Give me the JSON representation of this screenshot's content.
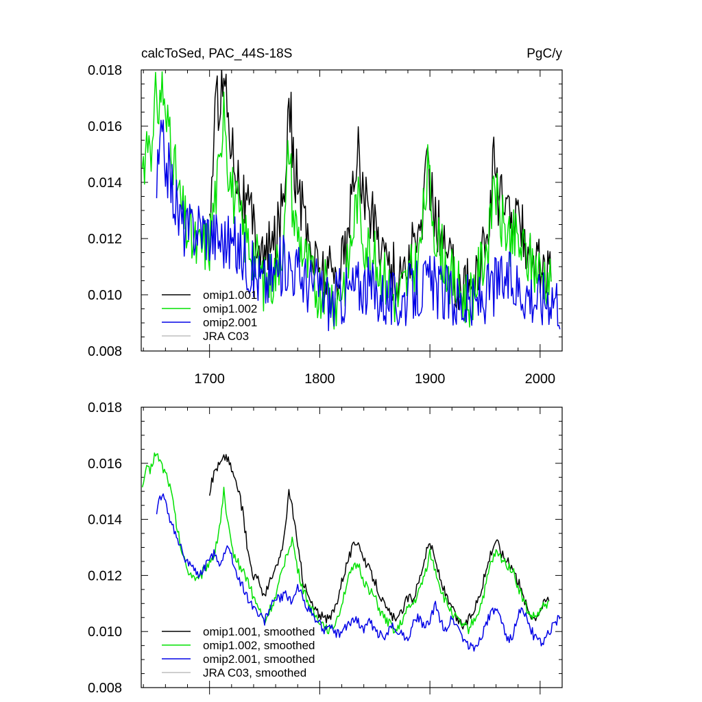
{
  "figure": {
    "title_left": "calcToSed, PAC_44S-18S",
    "title_right": "PgC/y"
  },
  "colors": {
    "omip1_001": "#000000",
    "omip1_002": "#00e000",
    "omip2_001": "#0000e6",
    "jra_c03": "#bdbdbd"
  },
  "chart_data": [
    {
      "type": "line",
      "panel": "top",
      "title": "calcToSed, PAC_44S-18S",
      "units": "PgC/y",
      "xlim": [
        1638,
        2020
      ],
      "ylim": [
        0.008,
        0.018
      ],
      "x_ticks": [
        1700,
        1800,
        1900,
        2000
      ],
      "x_tick_labels": [
        "1700",
        "1800",
        "1900",
        "2000"
      ],
      "y_ticks": [
        0.008,
        0.01,
        0.012,
        0.014,
        0.016,
        0.018
      ],
      "y_tick_labels": [
        "0.008",
        "0.010",
        "0.012",
        "0.014",
        "0.016",
        "0.018"
      ],
      "legend": [
        "omip1.001",
        "omip1.002",
        "omip2.001",
        "JRA C03"
      ],
      "legend_position": "bottom-left",
      "series": [
        {
          "name": "omip1.001",
          "color_key": "omip1_001",
          "x": [
            1700,
            1705,
            1710,
            1713,
            1716,
            1720,
            1725,
            1730,
            1740,
            1750,
            1760,
            1768,
            1772,
            1776,
            1785,
            1795,
            1805,
            1815,
            1825,
            1834,
            1840,
            1850,
            1860,
            1870,
            1880,
            1890,
            1898,
            1905,
            1915,
            1925,
            1935,
            1945,
            1955,
            1958,
            1962,
            1970,
            1980,
            1990,
            2000,
            2010
          ],
          "y": [
            0.0125,
            0.0165,
            0.0172,
            0.0178,
            0.0168,
            0.0155,
            0.0145,
            0.0135,
            0.0125,
            0.0112,
            0.012,
            0.0138,
            0.0175,
            0.0148,
            0.0128,
            0.0112,
            0.0108,
            0.0108,
            0.0118,
            0.0153,
            0.0135,
            0.0125,
            0.0115,
            0.0105,
            0.0112,
            0.012,
            0.0145,
            0.0128,
            0.0115,
            0.0105,
            0.0102,
            0.0112,
            0.0128,
            0.0155,
            0.0135,
            0.0128,
            0.0125,
            0.0118,
            0.011,
            0.0105
          ]
        },
        {
          "name": "omip1.002",
          "color_key": "omip1_002",
          "x": [
            1639,
            1643,
            1646,
            1648,
            1652,
            1654,
            1657,
            1660,
            1664,
            1668,
            1672,
            1676,
            1680,
            1685,
            1690,
            1695,
            1700,
            1705,
            1710,
            1713,
            1716,
            1720,
            1725,
            1730,
            1740,
            1750,
            1760,
            1768,
            1772,
            1776,
            1785,
            1795,
            1805,
            1815,
            1825,
            1834,
            1840,
            1850,
            1860,
            1870,
            1880,
            1890,
            1898,
            1905,
            1915,
            1925,
            1935,
            1945,
            1955,
            1958,
            1962,
            1970,
            1980,
            1990,
            2000,
            2010
          ],
          "y": [
            0.0145,
            0.0155,
            0.016,
            0.0148,
            0.0175,
            0.0162,
            0.0178,
            0.0158,
            0.0162,
            0.0145,
            0.0135,
            0.0128,
            0.0122,
            0.0118,
            0.0115,
            0.0118,
            0.0118,
            0.0135,
            0.0145,
            0.0175,
            0.015,
            0.0138,
            0.013,
            0.0122,
            0.0115,
            0.0103,
            0.0108,
            0.0122,
            0.0155,
            0.0128,
            0.0115,
            0.0103,
            0.0102,
            0.0098,
            0.0108,
            0.0135,
            0.012,
            0.0112,
            0.0105,
            0.0098,
            0.0105,
            0.0112,
            0.0143,
            0.0122,
            0.011,
            0.0102,
            0.0098,
            0.0108,
            0.0122,
            0.0145,
            0.0128,
            0.0122,
            0.0118,
            0.0112,
            0.0108,
            0.0105
          ]
        },
        {
          "name": "omip2.001",
          "color_key": "omip2_001",
          "x": [
            1652,
            1656,
            1660,
            1664,
            1668,
            1672,
            1676,
            1680,
            1690,
            1700,
            1710,
            1720,
            1730,
            1740,
            1750,
            1760,
            1770,
            1780,
            1790,
            1800,
            1810,
            1820,
            1830,
            1840,
            1850,
            1860,
            1870,
            1880,
            1890,
            1900,
            1910,
            1920,
            1930,
            1940,
            1950,
            1960,
            1970,
            1980,
            1990,
            2000,
            2010,
            2018
          ],
          "y": [
            0.0138,
            0.0155,
            0.0148,
            0.0142,
            0.0135,
            0.0128,
            0.0125,
            0.0122,
            0.0125,
            0.0122,
            0.012,
            0.0118,
            0.0115,
            0.0108,
            0.0104,
            0.0108,
            0.0112,
            0.0108,
            0.0104,
            0.0103,
            0.0097,
            0.01,
            0.0102,
            0.0104,
            0.0101,
            0.0099,
            0.0097,
            0.01,
            0.0102,
            0.0104,
            0.0101,
            0.0099,
            0.0097,
            0.0096,
            0.01,
            0.0104,
            0.0105,
            0.0103,
            0.0101,
            0.0098,
            0.0101,
            0.0098
          ]
        }
      ]
    },
    {
      "type": "line",
      "panel": "bottom",
      "xlim": [
        1638,
        2020
      ],
      "ylim": [
        0.008,
        0.018
      ],
      "x_ticks": [
        1700,
        1800,
        1900,
        2000
      ],
      "y_ticks": [
        0.008,
        0.01,
        0.012,
        0.014,
        0.016,
        0.018
      ],
      "y_tick_labels": [
        "0.008",
        "0.010",
        "0.012",
        "0.014",
        "0.016",
        "0.018"
      ],
      "legend": [
        "omip1.001, smoothed",
        "omip1.002, smoothed",
        "omip2.001, smoothed",
        "JRA C03, smoothed"
      ],
      "legend_position": "bottom-left",
      "series": [
        {
          "name": "omip1.001, smoothed",
          "color_key": "omip1_001",
          "x": [
            1700,
            1705,
            1710,
            1715,
            1720,
            1725,
            1730,
            1735,
            1740,
            1745,
            1750,
            1755,
            1760,
            1765,
            1770,
            1772,
            1775,
            1780,
            1785,
            1790,
            1795,
            1800,
            1805,
            1810,
            1815,
            1820,
            1825,
            1830,
            1835,
            1840,
            1845,
            1850,
            1855,
            1860,
            1865,
            1870,
            1875,
            1880,
            1885,
            1890,
            1895,
            1900,
            1905,
            1910,
            1915,
            1920,
            1925,
            1930,
            1935,
            1940,
            1945,
            1950,
            1955,
            1960,
            1965,
            1970,
            1975,
            1980,
            1985,
            1990,
            1995,
            2000,
            2005,
            2008
          ],
          "y": [
            0.015,
            0.0158,
            0.016,
            0.0163,
            0.0158,
            0.0152,
            0.0143,
            0.0128,
            0.012,
            0.0118,
            0.0112,
            0.0118,
            0.0122,
            0.0128,
            0.014,
            0.015,
            0.0145,
            0.013,
            0.0118,
            0.0112,
            0.0108,
            0.0106,
            0.0104,
            0.0105,
            0.011,
            0.0118,
            0.0125,
            0.013,
            0.0133,
            0.0125,
            0.0122,
            0.0118,
            0.0113,
            0.0108,
            0.0106,
            0.0103,
            0.0108,
            0.0112,
            0.0112,
            0.0118,
            0.0126,
            0.0132,
            0.0125,
            0.0118,
            0.0112,
            0.0108,
            0.0104,
            0.0102,
            0.0104,
            0.0108,
            0.0113,
            0.012,
            0.0128,
            0.0133,
            0.0128,
            0.0125,
            0.0123,
            0.0118,
            0.0112,
            0.0107,
            0.0105,
            0.0108,
            0.0111,
            0.0112
          ]
        },
        {
          "name": "omip1.002, smoothed",
          "color_key": "omip1_002",
          "x": [
            1639,
            1642,
            1646,
            1650,
            1654,
            1658,
            1662,
            1666,
            1670,
            1675,
            1680,
            1685,
            1690,
            1695,
            1700,
            1705,
            1710,
            1713,
            1715,
            1720,
            1725,
            1730,
            1735,
            1740,
            1745,
            1750,
            1755,
            1760,
            1765,
            1770,
            1775,
            1780,
            1785,
            1790,
            1795,
            1800,
            1805,
            1810,
            1815,
            1820,
            1825,
            1830,
            1835,
            1840,
            1845,
            1850,
            1855,
            1860,
            1865,
            1870,
            1875,
            1880,
            1885,
            1890,
            1895,
            1900,
            1905,
            1910,
            1915,
            1920,
            1925,
            1930,
            1935,
            1940,
            1945,
            1950,
            1955,
            1960,
            1965,
            1970,
            1975,
            1980,
            1985,
            1990,
            1995,
            2000,
            2005,
            2008
          ],
          "y": [
            0.015,
            0.0158,
            0.0157,
            0.0163,
            0.0162,
            0.0158,
            0.0155,
            0.0148,
            0.0138,
            0.0128,
            0.0122,
            0.012,
            0.0118,
            0.0122,
            0.0125,
            0.0128,
            0.014,
            0.015,
            0.0142,
            0.013,
            0.0125,
            0.0122,
            0.0118,
            0.0112,
            0.0108,
            0.0103,
            0.0108,
            0.0112,
            0.012,
            0.0128,
            0.0133,
            0.0122,
            0.0115,
            0.011,
            0.0106,
            0.0104,
            0.0102,
            0.01,
            0.0104,
            0.011,
            0.0118,
            0.0122,
            0.0124,
            0.0118,
            0.0115,
            0.0112,
            0.0107,
            0.0104,
            0.0102,
            0.01,
            0.0104,
            0.0108,
            0.011,
            0.0114,
            0.012,
            0.0128,
            0.0122,
            0.0115,
            0.011,
            0.0107,
            0.0104,
            0.0102,
            0.0101,
            0.0104,
            0.0108,
            0.0115,
            0.0124,
            0.0128,
            0.0126,
            0.0124,
            0.0122,
            0.0116,
            0.0111,
            0.0106,
            0.0105,
            0.0107,
            0.011,
            0.011
          ]
        },
        {
          "name": "omip2.001, smoothed",
          "color_key": "omip2_001",
          "x": [
            1652,
            1655,
            1658,
            1662,
            1666,
            1670,
            1675,
            1680,
            1685,
            1690,
            1695,
            1700,
            1705,
            1710,
            1715,
            1720,
            1725,
            1730,
            1735,
            1740,
            1745,
            1750,
            1755,
            1760,
            1765,
            1770,
            1775,
            1780,
            1785,
            1790,
            1795,
            1800,
            1805,
            1810,
            1815,
            1820,
            1825,
            1830,
            1835,
            1840,
            1845,
            1850,
            1855,
            1860,
            1865,
            1870,
            1875,
            1880,
            1885,
            1890,
            1895,
            1900,
            1905,
            1910,
            1915,
            1920,
            1925,
            1930,
            1935,
            1940,
            1945,
            1950,
            1955,
            1960,
            1965,
            1970,
            1975,
            1980,
            1985,
            1990,
            1995,
            2000,
            2005,
            2010,
            2015,
            2018
          ],
          "y": [
            0.0141,
            0.0148,
            0.0149,
            0.0142,
            0.0138,
            0.0135,
            0.0128,
            0.0125,
            0.0122,
            0.012,
            0.0122,
            0.0126,
            0.0128,
            0.0124,
            0.013,
            0.0127,
            0.012,
            0.0116,
            0.0112,
            0.0109,
            0.0106,
            0.0104,
            0.0109,
            0.0111,
            0.0112,
            0.0113,
            0.011,
            0.0116,
            0.0112,
            0.0108,
            0.0105,
            0.0103,
            0.01,
            0.0101,
            0.0099,
            0.01,
            0.0102,
            0.0105,
            0.0103,
            0.0101,
            0.0104,
            0.01,
            0.0099,
            0.0097,
            0.0102,
            0.0101,
            0.0099,
            0.0098,
            0.0103,
            0.0105,
            0.0101,
            0.0104,
            0.0109,
            0.0103,
            0.0101,
            0.0105,
            0.0102,
            0.0098,
            0.0095,
            0.0094,
            0.0097,
            0.0102,
            0.0106,
            0.0108,
            0.0103,
            0.0097,
            0.0099,
            0.0106,
            0.0108,
            0.0102,
            0.0098,
            0.0096,
            0.0097,
            0.0101,
            0.0104,
            0.0105
          ]
        }
      ]
    }
  ]
}
